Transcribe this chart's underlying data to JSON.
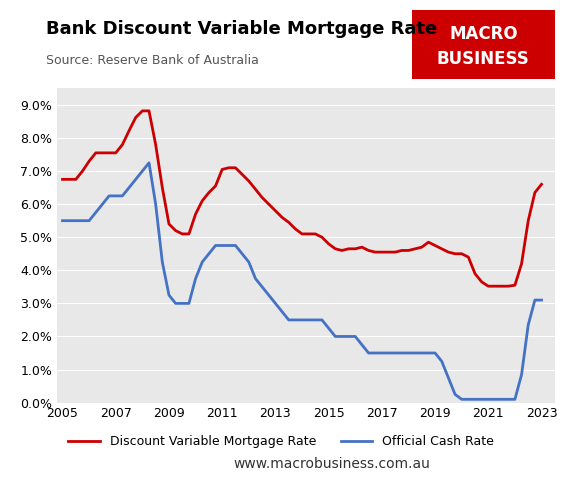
{
  "title": "Bank Discount Variable Mortgage Rate",
  "subtitle": "Source: Reserve Bank of Australia",
  "xlabel": "",
  "ylabel": "",
  "background_color": "#e8e8e8",
  "title_color": "#000000",
  "subtitle_color": "#555555",
  "legend1": "Discount Variable Mortgage Rate",
  "legend2": "Official Cash Rate",
  "website": "www.macrobusiness.com.au",
  "logo_bg": "#cc0000",
  "logo_text1": "MACRO",
  "logo_text2": "BUSINESS",
  "mortgage_rate": {
    "x": [
      2005.0,
      2005.25,
      2005.5,
      2005.75,
      2006.0,
      2006.25,
      2006.5,
      2006.75,
      2007.0,
      2007.25,
      2007.5,
      2007.75,
      2008.0,
      2008.25,
      2008.5,
      2008.75,
      2009.0,
      2009.25,
      2009.5,
      2009.75,
      2010.0,
      2010.25,
      2010.5,
      2010.75,
      2011.0,
      2011.25,
      2011.5,
      2011.75,
      2012.0,
      2012.25,
      2012.5,
      2012.75,
      2013.0,
      2013.25,
      2013.5,
      2013.75,
      2014.0,
      2014.25,
      2014.5,
      2014.75,
      2015.0,
      2015.25,
      2015.5,
      2015.75,
      2016.0,
      2016.25,
      2016.5,
      2016.75,
      2017.0,
      2017.25,
      2017.5,
      2017.75,
      2018.0,
      2018.25,
      2018.5,
      2018.75,
      2019.0,
      2019.25,
      2019.5,
      2019.75,
      2020.0,
      2020.25,
      2020.5,
      2020.75,
      2021.0,
      2021.25,
      2021.5,
      2021.75,
      2022.0,
      2022.25,
      2022.5,
      2022.75,
      2023.0
    ],
    "y": [
      6.75,
      6.75,
      6.75,
      7.0,
      7.3,
      7.55,
      7.55,
      7.55,
      7.55,
      7.8,
      8.22,
      8.62,
      8.82,
      8.82,
      7.8,
      6.5,
      5.4,
      5.2,
      5.1,
      5.1,
      5.7,
      6.1,
      6.35,
      6.55,
      7.05,
      7.1,
      7.1,
      6.9,
      6.7,
      6.45,
      6.2,
      6.0,
      5.8,
      5.6,
      5.45,
      5.25,
      5.1,
      5.1,
      5.1,
      5.0,
      4.8,
      4.65,
      4.6,
      4.65,
      4.65,
      4.7,
      4.6,
      4.55,
      4.55,
      4.55,
      4.55,
      4.6,
      4.6,
      4.65,
      4.7,
      4.85,
      4.75,
      4.65,
      4.55,
      4.5,
      4.5,
      4.4,
      3.9,
      3.65,
      3.52,
      3.52,
      3.52,
      3.52,
      3.55,
      4.2,
      5.5,
      6.35,
      6.6
    ]
  },
  "cash_rate": {
    "x": [
      2005.0,
      2005.25,
      2005.5,
      2005.75,
      2006.0,
      2006.25,
      2006.5,
      2006.75,
      2007.0,
      2007.25,
      2007.5,
      2007.75,
      2008.0,
      2008.25,
      2008.5,
      2008.75,
      2009.0,
      2009.25,
      2009.5,
      2009.75,
      2010.0,
      2010.25,
      2010.5,
      2010.75,
      2011.0,
      2011.25,
      2011.5,
      2011.75,
      2012.0,
      2012.25,
      2012.5,
      2012.75,
      2013.0,
      2013.25,
      2013.5,
      2013.75,
      2014.0,
      2014.25,
      2014.5,
      2014.75,
      2015.0,
      2015.25,
      2015.5,
      2015.75,
      2016.0,
      2016.25,
      2016.5,
      2016.75,
      2017.0,
      2017.25,
      2017.5,
      2017.75,
      2018.0,
      2018.25,
      2018.5,
      2018.75,
      2019.0,
      2019.25,
      2019.5,
      2019.75,
      2020.0,
      2020.25,
      2020.5,
      2020.75,
      2021.0,
      2021.25,
      2021.5,
      2021.75,
      2022.0,
      2022.25,
      2022.5,
      2022.75,
      2023.0
    ],
    "y": [
      5.5,
      5.5,
      5.5,
      5.5,
      5.5,
      5.75,
      6.0,
      6.25,
      6.25,
      6.25,
      6.5,
      6.75,
      7.0,
      7.25,
      6.0,
      4.25,
      3.25,
      3.0,
      3.0,
      3.0,
      3.75,
      4.25,
      4.5,
      4.75,
      4.75,
      4.75,
      4.75,
      4.5,
      4.25,
      3.75,
      3.5,
      3.25,
      3.0,
      2.75,
      2.5,
      2.5,
      2.5,
      2.5,
      2.5,
      2.5,
      2.25,
      2.0,
      2.0,
      2.0,
      2.0,
      1.75,
      1.5,
      1.5,
      1.5,
      1.5,
      1.5,
      1.5,
      1.5,
      1.5,
      1.5,
      1.5,
      1.5,
      1.25,
      0.75,
      0.25,
      0.1,
      0.1,
      0.1,
      0.1,
      0.1,
      0.1,
      0.1,
      0.1,
      0.1,
      0.85,
      2.35,
      3.1,
      3.1
    ]
  },
  "ylim": [
    0,
    9.5
  ],
  "xlim": [
    2004.8,
    2023.5
  ],
  "yticks": [
    0.0,
    1.0,
    2.0,
    3.0,
    4.0,
    5.0,
    6.0,
    7.0,
    8.0,
    9.0
  ],
  "xticks": [
    2005,
    2007,
    2009,
    2011,
    2013,
    2015,
    2017,
    2019,
    2021,
    2023
  ],
  "mortgage_color": "#cc0000",
  "cash_color": "#4472c4",
  "linewidth": 2.0
}
